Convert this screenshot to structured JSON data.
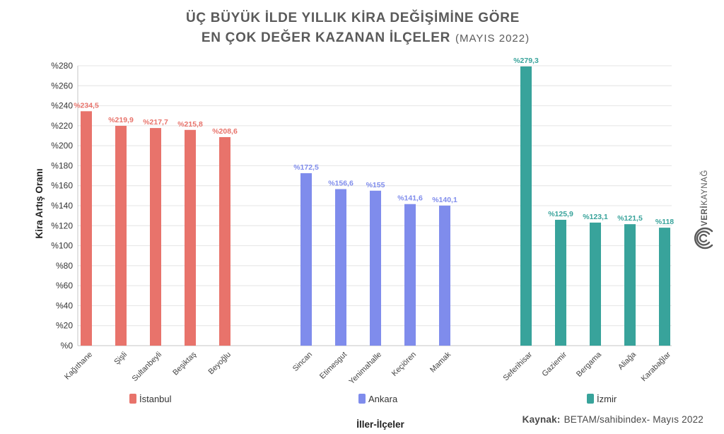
{
  "source": {
    "label": "Kaynak:",
    "text": "BETAM/sahibindex- Mayıs 2022"
  },
  "logo": {
    "bold": "VERİ",
    "regular": "KAYNAĞ"
  },
  "chart_data": {
    "type": "bar",
    "title": {
      "line1": "ÜÇ BÜYÜK İLDE YILLIK KİRA DEĞİŞİMİNE GÖRE",
      "line2": "EN ÇOK DEĞER KAZANAN İLÇELER",
      "date": "(MAYIS 2022)"
    },
    "xlabel": "İller-İlçeler",
    "ylabel": "Kira Artış Oranı",
    "ylim": [
      0,
      280
    ],
    "yticks": [
      0,
      20,
      40,
      60,
      80,
      100,
      120,
      140,
      160,
      180,
      200,
      220,
      240,
      260,
      280
    ],
    "ytick_labels": [
      "%0",
      "%20",
      "%40",
      "%60",
      "%80",
      "%100",
      "%120",
      "%140",
      "%160",
      "%180",
      "%200",
      "%220",
      "%240",
      "%260",
      "%280"
    ],
    "grid": true,
    "legend_position": "bottom",
    "series": [
      {
        "name": "İstanbul",
        "color": "#e8736b",
        "categories": [
          "Kağıthane",
          "Şişli",
          "Sultanbeyli",
          "Beşiktaş",
          "Beyoğlu"
        ],
        "values": [
          234.5,
          219.9,
          217.7,
          215.8,
          208.6
        ],
        "labels": [
          "%234,5",
          "%219,9",
          "%217,7",
          "%215,8",
          "%208,6"
        ]
      },
      {
        "name": "Ankara",
        "color": "#7f8cec",
        "categories": [
          "Sincan",
          "Etimesgut",
          "Yenimahalle",
          "Keçiören",
          "Mamak"
        ],
        "values": [
          172.5,
          156.6,
          155,
          141.6,
          140.1
        ],
        "labels": [
          "%172,5",
          "%156,6",
          "%155",
          "%141,6",
          "%140,1"
        ]
      },
      {
        "name": "İzmir",
        "color": "#38a39b",
        "categories": [
          "Seferihisar",
          "Gaziemir",
          "Bergama",
          "Aliağa",
          "Karabağlar"
        ],
        "values": [
          279.3,
          125.9,
          123.1,
          121.5,
          118
        ],
        "labels": [
          "%279,3",
          "%125,9",
          "%123,1",
          "%121,5",
          "%118"
        ]
      }
    ]
  }
}
